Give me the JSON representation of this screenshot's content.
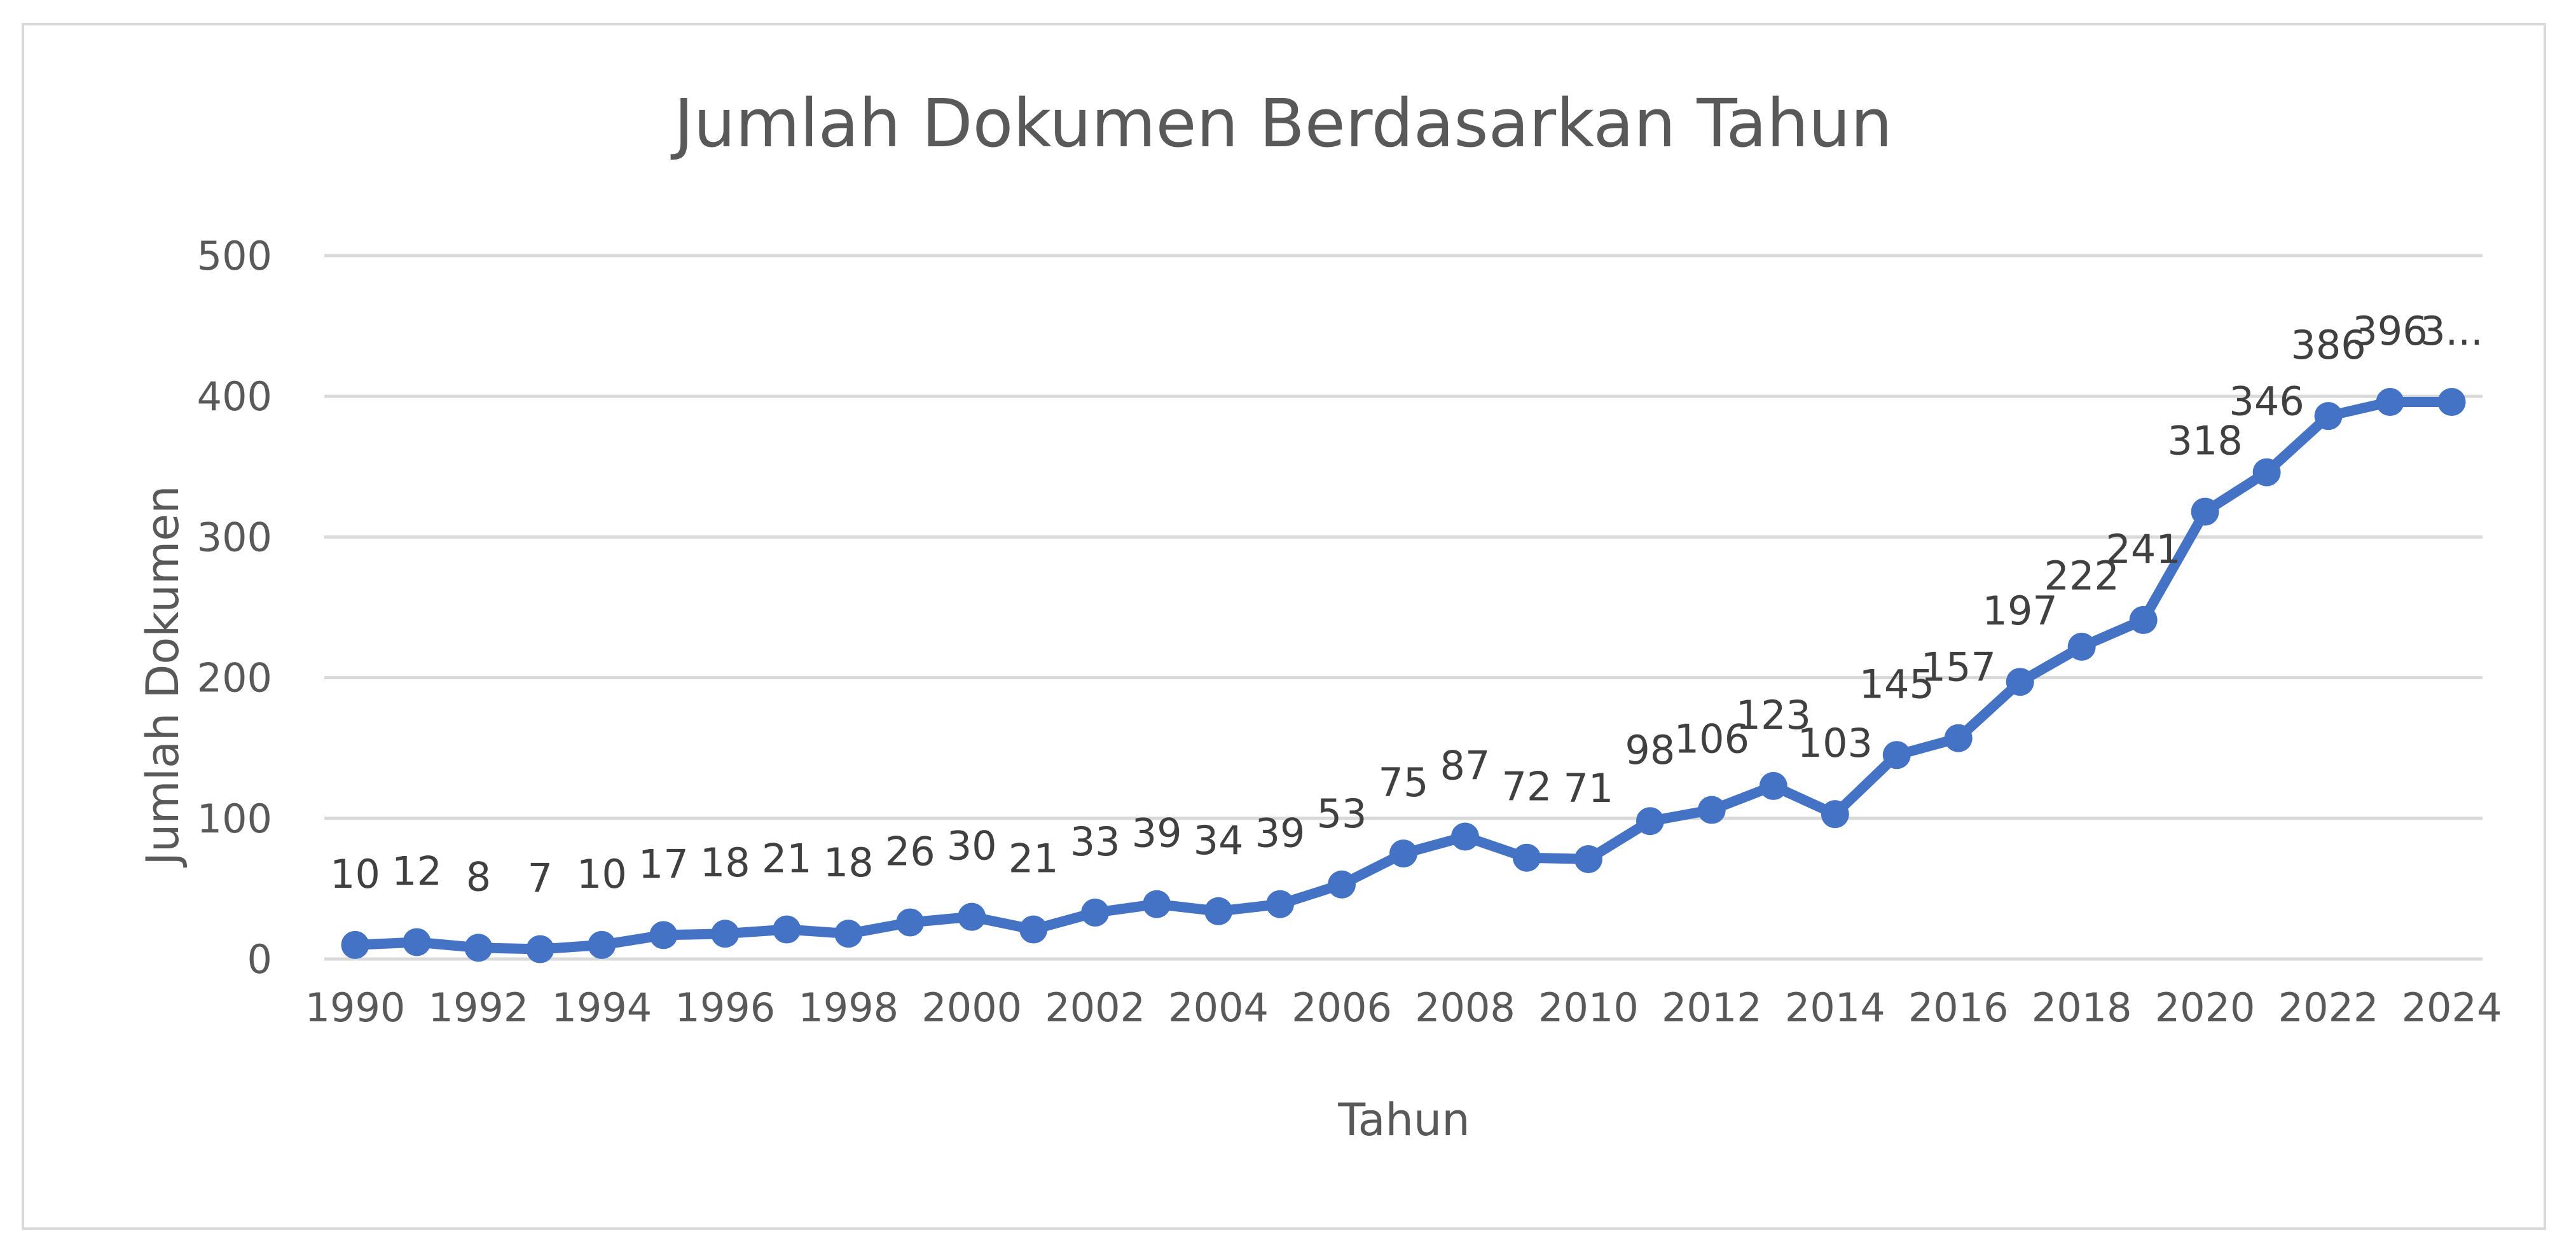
{
  "chart_data": {
    "type": "line",
    "title": "Jumlah Dokumen Berdasarkan Tahun",
    "xlabel": "Tahun",
    "ylabel": "Jumlah Dokumen",
    "ylim": [
      0,
      500
    ],
    "yticks": [
      "0",
      "100",
      "200",
      "300",
      "400",
      "500"
    ],
    "xtick_labels": [
      "1990",
      "1992",
      "1994",
      "1996",
      "1998",
      "2000",
      "2002",
      "2004",
      "2006",
      "2008",
      "2010",
      "2012",
      "2014",
      "2016",
      "2018",
      "2020",
      "2022",
      "2024"
    ],
    "grid": true,
    "legend": "none",
    "color": "#4472c4",
    "x": [
      1990,
      1991,
      1992,
      1993,
      1994,
      1995,
      1996,
      1997,
      1998,
      1999,
      2000,
      2001,
      2002,
      2003,
      2004,
      2005,
      2006,
      2007,
      2008,
      2009,
      2010,
      2011,
      2012,
      2013,
      2014,
      2015,
      2016,
      2017,
      2018,
      2019,
      2020,
      2021,
      2022,
      2023,
      2024
    ],
    "series": [
      {
        "values": [
          10,
          12,
          8,
          7,
          10,
          17,
          18,
          21,
          18,
          26,
          30,
          21,
          33,
          39,
          34,
          39,
          53,
          75,
          87,
          72,
          71,
          98,
          106,
          123,
          103,
          145,
          157,
          197,
          222,
          241,
          318,
          346,
          386,
          396,
          396
        ],
        "labels": [
          "10",
          "12",
          "8",
          "7",
          "10",
          "17",
          "18",
          "21",
          "18",
          "26",
          "30",
          "21",
          "33",
          "39",
          "34",
          "39",
          "53",
          "75",
          "87",
          "72",
          "71",
          "98",
          "106",
          "123",
          "103",
          "145",
          "157",
          "197",
          "222",
          "241",
          "318",
          "346",
          "386",
          "396",
          "3..."
        ]
      }
    ]
  }
}
